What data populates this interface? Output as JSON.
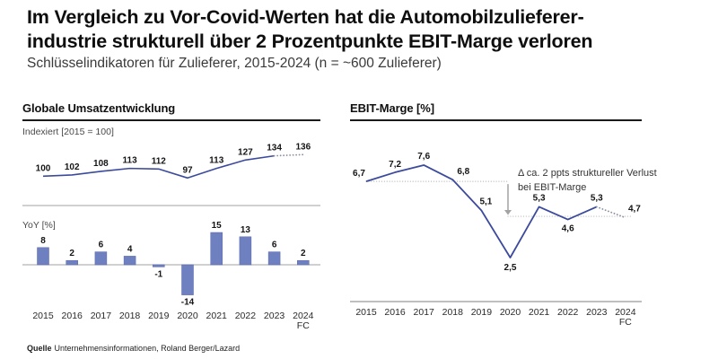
{
  "header": {
    "title_line1": "Im Vergleich zu Vor-Covid-Werten hat die Automobilzulieferer-",
    "title_line2": "industrie strukturell über 2 Prozentpunkte EBIT-Marge verloren",
    "subtitle": "Schlüsselindikatoren für Zulieferer, 2015-2024 (n = ~600 Zulieferer)"
  },
  "source": {
    "label": "Quelle",
    "text": "Unternehmensinformationen, Roland Berger/Lazard"
  },
  "colors": {
    "line": "#3c4a9c",
    "bar_fill": "#6f80c1",
    "bar_stroke": "#5566ab",
    "forecast_dotted": "#8d90a0",
    "reference_dotted": "#b9b9b9",
    "divider": "#b3b3b3",
    "axis_line": "#999999",
    "arrow": "#a3a3a3"
  },
  "chart_data": [
    {
      "type": "line",
      "title": "Globale Umsatzentwicklung",
      "unit_label": "Indexiert [2015 = 100]",
      "categories": [
        "2015",
        "2016",
        "2017",
        "2018",
        "2019",
        "2020",
        "2021",
        "2022",
        "2023",
        "2024"
      ],
      "last_category_suffix": "FC",
      "values": [
        100,
        102,
        108,
        113,
        112,
        97,
        113,
        127,
        134,
        136
      ],
      "value_labels": [
        "100",
        "102",
        "108",
        "113",
        "112",
        "97",
        "113",
        "127",
        "134",
        "136"
      ],
      "forecast_last_segment": true,
      "ylim": [
        95,
        140
      ],
      "legend": "none",
      "grid": false
    },
    {
      "type": "bar",
      "title": "YoY [%]",
      "categories": [
        "2015",
        "2016",
        "2017",
        "2018",
        "2019",
        "2020",
        "2021",
        "2022",
        "2023",
        "2024"
      ],
      "last_category_suffix": "FC",
      "values": [
        8,
        2,
        6,
        4,
        -1,
        -14,
        15,
        13,
        6,
        2
      ],
      "value_labels": [
        "8",
        "2",
        "6",
        "4",
        "-1",
        "-14",
        "15",
        "13",
        "6",
        "2"
      ],
      "ylim": [
        -16,
        17
      ],
      "legend": "none",
      "grid": false
    },
    {
      "type": "line",
      "title": "EBIT-Marge [%]",
      "categories": [
        "2015",
        "2016",
        "2017",
        "2018",
        "2019",
        "2020",
        "2021",
        "2022",
        "2023",
        "2024"
      ],
      "last_category_suffix": "FC",
      "values": [
        6.7,
        7.2,
        7.6,
        6.8,
        5.1,
        2.5,
        5.3,
        4.6,
        5.3,
        4.7
      ],
      "value_labels": [
        "6,7",
        "7,2",
        "7,6",
        "6,8",
        "5,1",
        "2,5",
        "5,3",
        "4,6",
        "5,3",
        "4,7"
      ],
      "forecast_last_segment": true,
      "annotation": {
        "line1": "Δ ca. 2 ppts struktureller Verlust",
        "line2": "bei EBIT-Marge",
        "reference_from": 6.7,
        "reference_to": 4.7
      },
      "ylim": [
        2,
        8
      ],
      "legend": "none",
      "grid": false
    }
  ]
}
